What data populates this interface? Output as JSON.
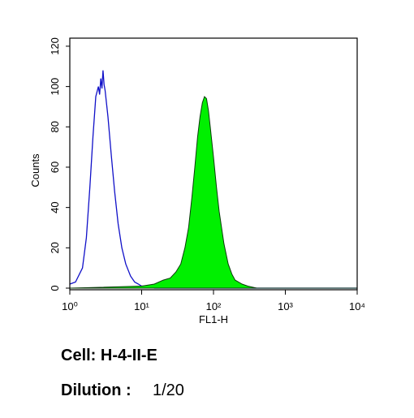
{
  "chart_data": {
    "type": "line",
    "xlabel": "FL1-H",
    "ylabel": "Counts",
    "xscale": "log",
    "xlim": [
      1,
      10000
    ],
    "xticks": [
      {
        "value": 1,
        "label": "10⁰"
      },
      {
        "value": 10,
        "label": "10¹"
      },
      {
        "value": 100,
        "label": "10²"
      },
      {
        "value": 1000,
        "label": "10³"
      },
      {
        "value": 10000,
        "label": "10⁴"
      }
    ],
    "ylim": [
      0,
      124
    ],
    "yticks": [
      0,
      20,
      40,
      60,
      80,
      100,
      120
    ],
    "grid": false,
    "series": [
      {
        "color": "#1010c8",
        "fill": false,
        "x": [
          1,
          1.2,
          1.5,
          1.7,
          1.9,
          2.1,
          2.3,
          2.5,
          2.6,
          2.7,
          2.8,
          2.9,
          3.0,
          3.1,
          3.4,
          3.8,
          4.2,
          4.7,
          5.3,
          6,
          7,
          8,
          9,
          10,
          12,
          15,
          20,
          30,
          50,
          100,
          1000,
          10000
        ],
        "values": [
          2,
          3,
          10,
          25,
          50,
          75,
          95,
          100,
          96,
          104,
          99,
          108,
          101,
          98,
          85,
          65,
          48,
          32,
          20,
          12,
          6,
          3,
          2,
          1,
          1,
          0,
          0,
          0,
          0,
          0,
          0,
          0
        ]
      },
      {
        "color": "#00f000",
        "fill": true,
        "x": [
          1,
          10,
          15,
          20,
          25,
          30,
          35,
          40,
          45,
          50,
          55,
          60,
          65,
          70,
          75,
          80,
          85,
          90,
          100,
          110,
          120,
          140,
          160,
          180,
          200,
          250,
          300,
          400,
          1000,
          10000
        ],
        "values": [
          0,
          1,
          2,
          4,
          5,
          8,
          12,
          20,
          30,
          45,
          60,
          75,
          85,
          92,
          95,
          94,
          88,
          80,
          65,
          50,
          38,
          22,
          12,
          7,
          4,
          2,
          1,
          0,
          0,
          0
        ]
      }
    ],
    "annotations": [
      "Cell: H-4-II-E",
      "Dilution :",
      "1/20"
    ]
  }
}
